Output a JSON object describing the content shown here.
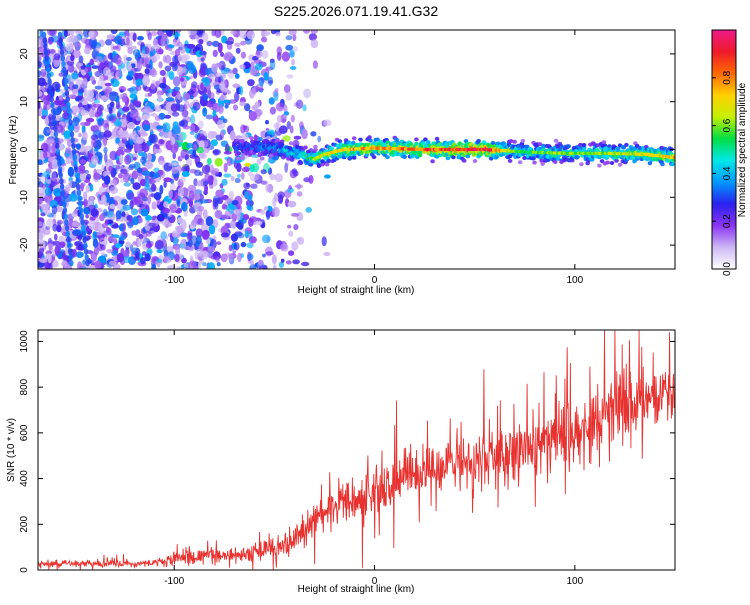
{
  "page": {
    "title": "S225.2026.071.19.41.G32"
  },
  "colors": {
    "snr_line": "#e8322f",
    "axis": "#000000",
    "background": "#ffffff"
  },
  "chart_data": [
    {
      "type": "heatmap",
      "title": "S225.2026.071.19.41.G32",
      "xlabel": "Height of straight line (km)",
      "ylabel": "Frequency (Hz)",
      "xlim": [
        -168,
        150
      ],
      "ylim": [
        -25,
        25
      ],
      "x_ticks": [
        -100,
        0,
        100
      ],
      "x_tick_labels": [
        "-100",
        "0",
        "100"
      ],
      "y_ticks": [
        -20,
        -10,
        0,
        10,
        20
      ],
      "y_tick_labels": [
        "-20",
        "-10",
        "0",
        "10",
        "20"
      ],
      "grid": false,
      "colorbar": {
        "label": "Normalized spectral amplitude",
        "range": [
          0,
          1
        ],
        "ticks": [
          0,
          0.2,
          0.4,
          0.6,
          0.8
        ],
        "tick_labels": [
          "0.0",
          "0.2",
          "0.4",
          "0.6",
          "0.8"
        ],
        "colors": [
          "#ffffff",
          "#cdb8f5",
          "#8a33f2",
          "#2a22ee",
          "#0099ff",
          "#00e8e8",
          "#00dd44",
          "#c4f000",
          "#ffd000",
          "#ff6a00",
          "#ee1a2a",
          "#ee1a8a"
        ]
      },
      "ridge": [
        {
          "x": -55,
          "y": 0.5
        },
        {
          "x": -45,
          "y": 0.0
        },
        {
          "x": -38,
          "y": -1.0
        },
        {
          "x": -30,
          "y": -2.0
        },
        {
          "x": -25,
          "y": -1.0
        },
        {
          "x": -15,
          "y": 0.0
        },
        {
          "x": 0,
          "y": 0.3
        },
        {
          "x": 25,
          "y": 0.0
        },
        {
          "x": 55,
          "y": 0.0
        },
        {
          "x": 75,
          "y": -0.5
        },
        {
          "x": 95,
          "y": -0.8
        },
        {
          "x": 115,
          "y": -0.8
        },
        {
          "x": 135,
          "y": -1.0
        },
        {
          "x": 150,
          "y": -1.7
        }
      ],
      "ridge_amplitude": [
        {
          "x": -60,
          "a": 0.35
        },
        {
          "x": -40,
          "a": 0.5
        },
        {
          "x": -20,
          "a": 0.7
        },
        {
          "x": 20,
          "a": 0.8
        },
        {
          "x": 55,
          "a": 0.9
        },
        {
          "x": 70,
          "a": 0.55
        },
        {
          "x": 110,
          "a": 0.6
        },
        {
          "x": 150,
          "a": 0.7
        }
      ],
      "noise_density": [
        {
          "x": -168,
          "d": 1.0
        },
        {
          "x": -120,
          "d": 0.85
        },
        {
          "x": -90,
          "d": 0.7
        },
        {
          "x": -60,
          "d": 0.45
        },
        {
          "x": -35,
          "d": 0.12
        },
        {
          "x": -20,
          "d": 0.0
        }
      ]
    },
    {
      "type": "line",
      "xlabel": "Height of straight line (km)",
      "ylabel": "SNR (10 * v/v)",
      "xlim": [
        -168,
        150
      ],
      "ylim": [
        0,
        1050
      ],
      "x_ticks": [
        -100,
        0,
        100
      ],
      "x_tick_labels": [
        "-100",
        "0",
        "100"
      ],
      "y_ticks": [
        0,
        200,
        400,
        600,
        800,
        1000
      ],
      "y_tick_labels": [
        "0",
        "200",
        "400",
        "600",
        "800",
        "1000"
      ],
      "grid": false,
      "series": [
        {
          "name": "SNR",
          "envelope": [
            {
              "x": -168,
              "mean": 25,
              "spread": 20
            },
            {
              "x": -110,
              "mean": 30,
              "spread": 20
            },
            {
              "x": -95,
              "mean": 60,
              "spread": 45
            },
            {
              "x": -80,
              "mean": 60,
              "spread": 40
            },
            {
              "x": -60,
              "mean": 70,
              "spread": 45
            },
            {
              "x": -45,
              "mean": 110,
              "spread": 70
            },
            {
              "x": -30,
              "mean": 210,
              "spread": 110
            },
            {
              "x": -15,
              "mean": 290,
              "spread": 140
            },
            {
              "x": 0,
              "mean": 350,
              "spread": 150
            },
            {
              "x": 20,
              "mean": 430,
              "spread": 150
            },
            {
              "x": 50,
              "mean": 480,
              "spread": 150
            },
            {
              "x": 80,
              "mean": 540,
              "spread": 170
            },
            {
              "x": 100,
              "mean": 600,
              "spread": 180
            },
            {
              "x": 125,
              "mean": 720,
              "spread": 200
            },
            {
              "x": 150,
              "mean": 800,
              "spread": 180
            }
          ]
        }
      ]
    }
  ]
}
